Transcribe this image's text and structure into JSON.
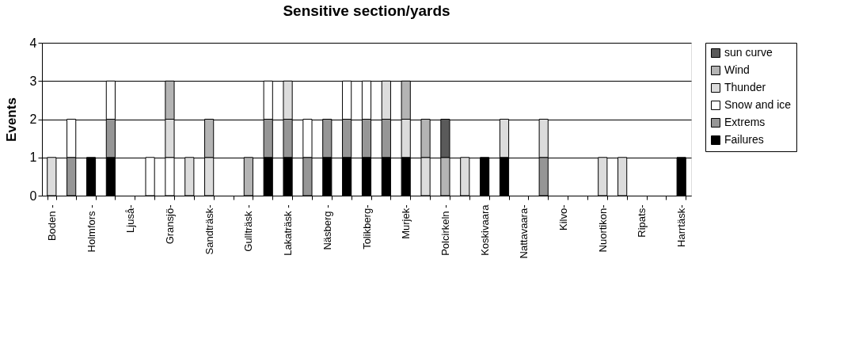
{
  "chart_data": {
    "type": "bar",
    "title": "Sensitive section/yards",
    "ylabel": "Events",
    "categories": [
      "Boden -",
      null,
      "Holmfors -",
      null,
      "Ljuså-",
      null,
      "Gransjö-",
      null,
      "Sandträsk-",
      null,
      "Gullträsk -",
      null,
      "Lakaträsk -",
      null,
      "Näsberg -",
      null,
      "Tolikberg-",
      null,
      "Murjek-",
      null,
      "Polcirkeln -",
      null,
      "Koskivaara",
      null,
      "Nattavaara-",
      null,
      "Kilvo-",
      null,
      "Nuortikon-",
      null,
      "Ripats-",
      null,
      "Harrtäsk-"
    ],
    "stacked": true,
    "series": [
      {
        "name": "Failures",
        "color": "#000000",
        "values": [
          null,
          null,
          1,
          1,
          null,
          null,
          null,
          null,
          null,
          null,
          null,
          1,
          1,
          null,
          1,
          1,
          1,
          1,
          1,
          null,
          null,
          null,
          1,
          1,
          null,
          null,
          null,
          null,
          null,
          null,
          null,
          null,
          1
        ]
      },
      {
        "name": "Extrems",
        "color": "#969696",
        "values": [
          null,
          1,
          null,
          1,
          null,
          null,
          null,
          null,
          null,
          null,
          null,
          1,
          1,
          1,
          1,
          1,
          1,
          1,
          null,
          null,
          null,
          null,
          null,
          null,
          null,
          1,
          null,
          null,
          null,
          null,
          null,
          null,
          null
        ]
      },
      {
        "name": "Snow and ice",
        "color": "#ffffff",
        "values": [
          null,
          1,
          null,
          1,
          null,
          1,
          1,
          null,
          null,
          null,
          null,
          1,
          null,
          1,
          null,
          1,
          1,
          null,
          null,
          null,
          null,
          null,
          null,
          null,
          null,
          null,
          null,
          null,
          null,
          null,
          null,
          null,
          null
        ]
      },
      {
        "name": "Thunder",
        "color": "#dcdcdc",
        "values": [
          1,
          null,
          null,
          null,
          null,
          null,
          1,
          1,
          1,
          null,
          null,
          null,
          1,
          null,
          null,
          null,
          null,
          1,
          1,
          1,
          null,
          1,
          null,
          1,
          null,
          1,
          null,
          null,
          1,
          1,
          null,
          null,
          null
        ]
      },
      {
        "name": "Wind",
        "color": "#b4b4b4",
        "values": [
          null,
          null,
          null,
          null,
          null,
          null,
          1,
          null,
          1,
          null,
          1,
          null,
          null,
          null,
          null,
          null,
          null,
          null,
          1,
          1,
          1,
          null,
          null,
          null,
          null,
          null,
          null,
          null,
          null,
          null,
          null,
          null,
          null
        ]
      },
      {
        "name": "sun curve",
        "color": "#5a5a5a",
        "values": [
          null,
          null,
          null,
          null,
          null,
          null,
          null,
          null,
          null,
          null,
          null,
          null,
          null,
          null,
          null,
          null,
          null,
          null,
          null,
          null,
          1,
          null,
          null,
          null,
          null,
          null,
          null,
          null,
          null,
          null,
          null,
          null,
          null
        ]
      }
    ],
    "ylim": [
      0,
      4
    ],
    "yticks": [
      0,
      1,
      2,
      3,
      4
    ],
    "grid": "y",
    "legend": "right"
  }
}
